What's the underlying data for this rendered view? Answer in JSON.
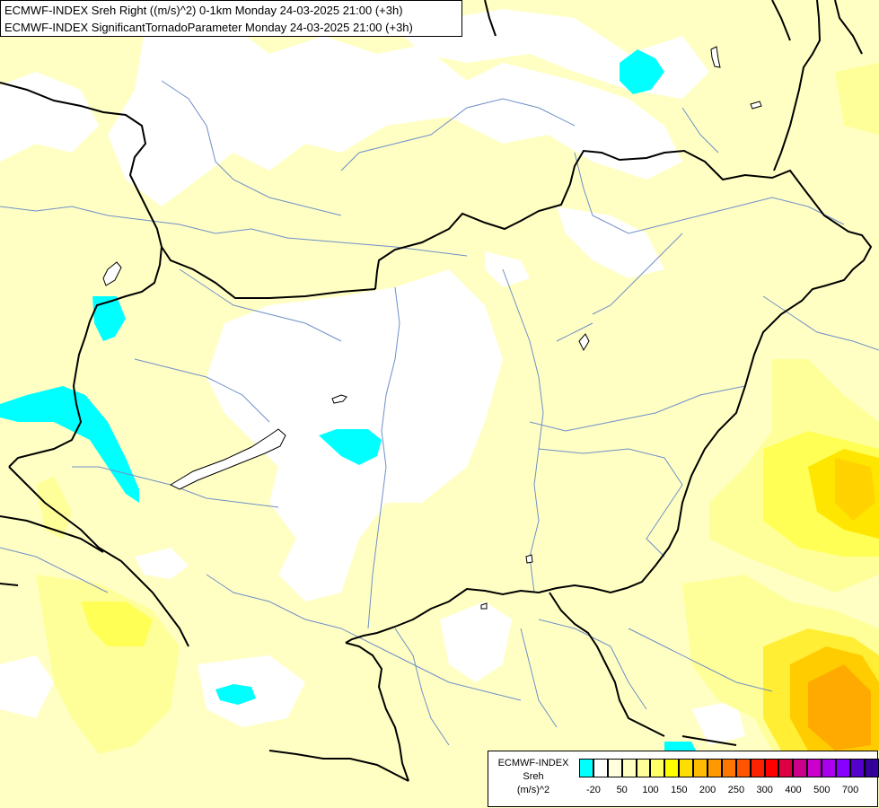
{
  "titles": {
    "line1": "ECMWF-INDEX Sreh Right ((m/s)^2) 0-1km Monday 24-03-2025 21:00 (+3h)",
    "line2": "ECMWF-INDEX SignificantTornadoParameter Monday 24-03-2025 21:00 (+3h)"
  },
  "legend": {
    "line1": "ECMWF-INDEX",
    "line2": "Sreh",
    "line3": "(m/s)^2",
    "swatch_colors": [
      "#00ffff",
      "#ffffff",
      "#ffffe0",
      "#ffffc0",
      "#ffff99",
      "#ffff66",
      "#ffff00",
      "#ffdd00",
      "#ffbb00",
      "#ff9900",
      "#ff7700",
      "#ff5500",
      "#ff2200",
      "#ff0000",
      "#dd0044",
      "#cc0088",
      "#cc00cc",
      "#aa00ee",
      "#8800ff",
      "#5500cc",
      "#330099",
      "#000080"
    ],
    "ticks": [
      "-20",
      "50",
      "100",
      "150",
      "200",
      "250",
      "300",
      "400",
      "500",
      "700"
    ]
  },
  "colors": {
    "base_yellow": "#ffffc4",
    "white": "#ffffff",
    "cyan": "#00ffff",
    "light_yellow": "#ffff99",
    "yellow": "#ffff33",
    "gold": "#ffdd00",
    "orange": "#ffaa00",
    "border": "#000000",
    "river": "#6f8fc7"
  }
}
